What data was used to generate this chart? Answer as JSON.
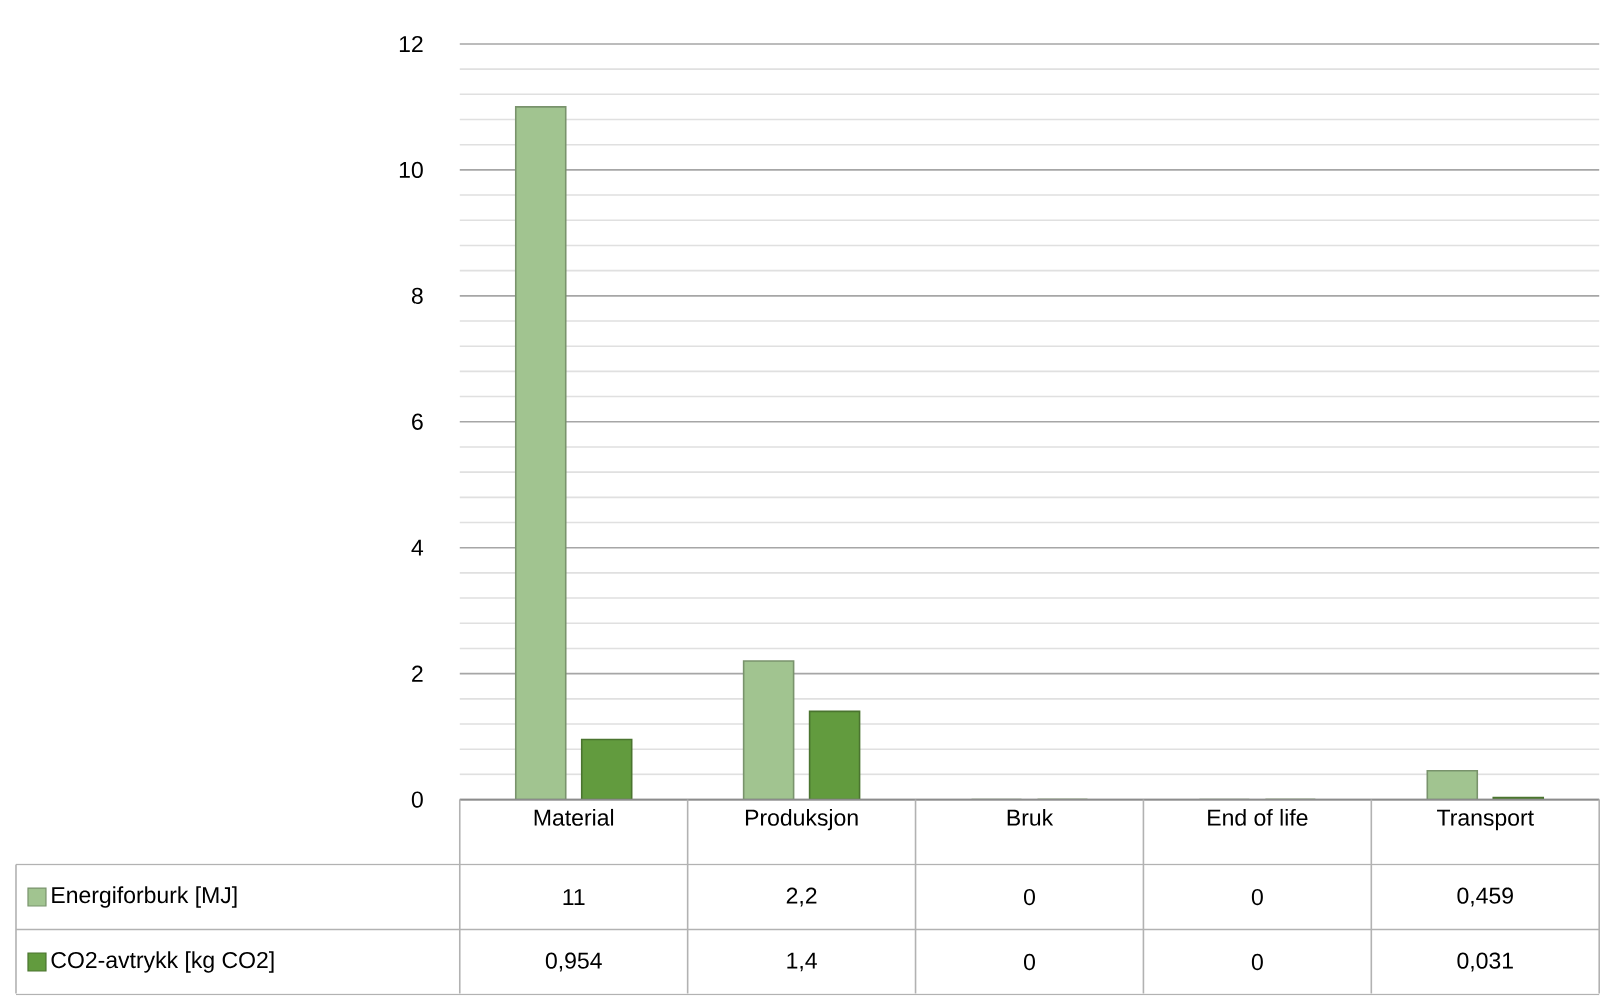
{
  "chart_data": {
    "type": "bar",
    "categories": [
      "Material",
      "Produksjon",
      "Bruk",
      "End of life",
      "Transport"
    ],
    "series": [
      {
        "name": "Energiforburk [MJ]",
        "color": "#a1c490",
        "values": [
          11,
          2.2,
          0,
          0,
          0.459
        ],
        "value_labels": [
          "11",
          "2,2",
          "0",
          "0",
          "0,459"
        ]
      },
      {
        "name": "CO2-avtrykk [kg CO2]",
        "color": "#629b3e",
        "values": [
          0.954,
          1.4,
          0,
          0,
          0.031
        ],
        "value_labels": [
          "0,954",
          "1,4",
          "0",
          "0",
          "0,031"
        ]
      }
    ],
    "ylim": [
      0,
      12
    ],
    "yticks": [
      0,
      {
        "value": 0.4,
        "label": null
      },
      {
        "value": 0.8,
        "label": null
      },
      {
        "value": 1.2,
        "label": null
      },
      {
        "value": 1.6,
        "label": null
      },
      2,
      {
        "value": 2.4,
        "label": null
      },
      {
        "value": 2.8,
        "label": null
      },
      {
        "value": 3.2,
        "label": null
      },
      {
        "value": 3.6,
        "label": null
      },
      4,
      {
        "value": 4.4,
        "label": null
      },
      {
        "value": 4.8,
        "label": null
      },
      {
        "value": 5.2,
        "label": null
      },
      {
        "value": 5.6,
        "label": null
      },
      6,
      {
        "value": 6.4,
        "label": null
      },
      {
        "value": 6.8,
        "label": null
      },
      {
        "value": 7.2,
        "label": null
      },
      {
        "value": 7.6,
        "label": null
      },
      8,
      {
        "value": 8.4,
        "label": null
      },
      {
        "value": 8.8,
        "label": null
      },
      {
        "value": 9.2,
        "label": null
      },
      {
        "value": 9.6,
        "label": null
      },
      10,
      {
        "value": 10.4,
        "label": null
      },
      {
        "value": 10.8,
        "label": null
      },
      {
        "value": 11.2,
        "label": null
      },
      {
        "value": 11.6,
        "label": null
      },
      12
    ],
    "grid": "y",
    "legend": "bottom left"
  }
}
